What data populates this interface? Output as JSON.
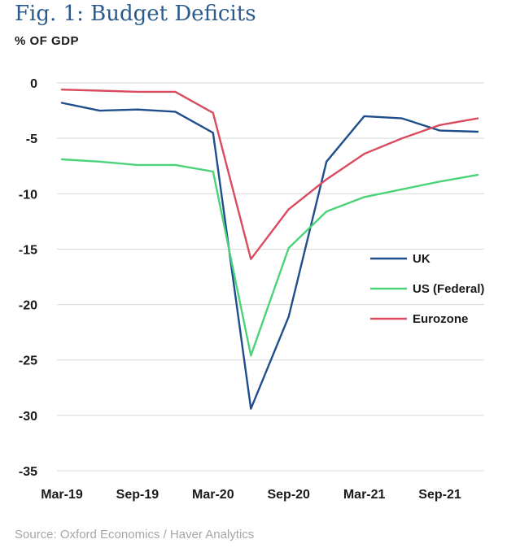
{
  "title": "Fig. 1: Budget Deficits",
  "unit_label": "% OF GDP",
  "source": "Source: Oxford Economics / Haver Analytics",
  "colors": {
    "UK": "#1f4e8c",
    "US (Federal)": "#4cd37a",
    "Eurozone": "#d94b5e",
    "grid": "#d9d9d9"
  },
  "chart_data": {
    "type": "line",
    "title": "Fig. 1: Budget Deficits",
    "ylabel": "% OF GDP",
    "xlabel": "",
    "ylim": [
      -35,
      0
    ],
    "yticks": [
      0,
      -5,
      -10,
      -15,
      -20,
      -25,
      -30,
      -35
    ],
    "x": [
      "Mar-19",
      "Jun-19",
      "Sep-19",
      "Dec-19",
      "Mar-20",
      "Jun-20",
      "Sep-20",
      "Dec-20",
      "Mar-21",
      "Jun-21",
      "Sep-21",
      "Dec-21"
    ],
    "xticks": [
      "Mar-19",
      "Sep-19",
      "Mar-20",
      "Sep-20",
      "Mar-21",
      "Sep-21"
    ],
    "series": [
      {
        "name": "UK",
        "values": [
          -1.8,
          -2.5,
          -2.4,
          -2.6,
          -4.5,
          -29.4,
          -21.1,
          -7.1,
          -3.0,
          -3.2,
          -4.3,
          -4.4
        ]
      },
      {
        "name": "US (Federal)",
        "values": [
          -6.9,
          -7.1,
          -7.4,
          -7.4,
          -8.0,
          -24.6,
          -14.9,
          -11.6,
          -10.3,
          -9.6,
          -8.9,
          -8.3
        ]
      },
      {
        "name": "Eurozone",
        "values": [
          -0.6,
          -0.7,
          -0.8,
          -0.8,
          -2.7,
          -15.9,
          -11.4,
          -8.7,
          -6.4,
          -5.0,
          -3.8,
          -3.2
        ]
      }
    ],
    "legend": [
      "UK",
      "US (Federal)",
      "Eurozone"
    ],
    "legend_position": "right",
    "grid": true
  }
}
